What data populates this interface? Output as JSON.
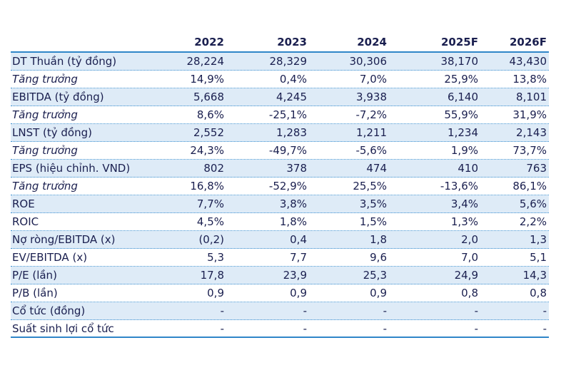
{
  "table": {
    "headers": [
      "",
      "2022",
      "2023",
      "2024",
      "2025F",
      "2026F"
    ],
    "rows": [
      {
        "label": "DT Thuần (tỷ đồng)",
        "values": [
          "28,224",
          "28,329",
          "30,306",
          "38,170",
          "43,430"
        ]
      },
      {
        "label": "Tăng trưởng",
        "values": [
          "14,9%",
          "0,4%",
          "7,0%",
          "25,9%",
          "13,8%"
        ]
      },
      {
        "label": "EBITDA (tỷ đồng)",
        "values": [
          "5,668",
          "4,245",
          "3,938",
          "6,140",
          "8,101"
        ]
      },
      {
        "label": "Tăng trưởng",
        "values": [
          "8,6%",
          "-25,1%",
          "-7,2%",
          "55,9%",
          "31,9%"
        ]
      },
      {
        "label": "LNST (tỷ đồng)",
        "values": [
          "2,552",
          "1,283",
          "1,211",
          "1,234",
          "2,143"
        ]
      },
      {
        "label": "Tăng trưởng",
        "values": [
          "24,3%",
          "-49,7%",
          "-5,6%",
          "1,9%",
          "73,7%"
        ]
      },
      {
        "label": "EPS (hiệu chỉnh. VND)",
        "values": [
          "802",
          "378",
          "474",
          "410",
          "763"
        ]
      },
      {
        "label": "Tăng trưởng",
        "values": [
          "16,8%",
          "-52,9%",
          "25,5%",
          "-13,6%",
          "86,1%"
        ]
      },
      {
        "label": "ROE",
        "values": [
          "7,7%",
          "3,8%",
          "3,5%",
          "3,4%",
          "5,6%"
        ]
      },
      {
        "label": "ROIC",
        "values": [
          "4,5%",
          "1,8%",
          "1,5%",
          "1,3%",
          "2,2%"
        ]
      },
      {
        "label": "Nợ ròng/EBITDA (x)",
        "values": [
          "(0,2)",
          "0,4",
          "1,8",
          "2,0",
          "1,3"
        ]
      },
      {
        "label": "EV/EBITDA (x)",
        "values": [
          "5,3",
          "7,7",
          "9,6",
          "7,0",
          "5,1"
        ]
      },
      {
        "label": "P/E (lần)",
        "values": [
          "17,8",
          "23,9",
          "25,3",
          "24,9",
          "14,3"
        ]
      },
      {
        "label": "P/B (lần)",
        "values": [
          "0,9",
          "0,9",
          "0,9",
          "0,8",
          "0,8"
        ]
      },
      {
        "label": "Cổ tức (đồng)",
        "values": [
          "-",
          "-",
          "-",
          "-",
          "-"
        ]
      },
      {
        "label": "Suất sinh lợi cổ tức",
        "values": [
          "-",
          "-",
          "-",
          "-",
          "-"
        ]
      }
    ]
  }
}
